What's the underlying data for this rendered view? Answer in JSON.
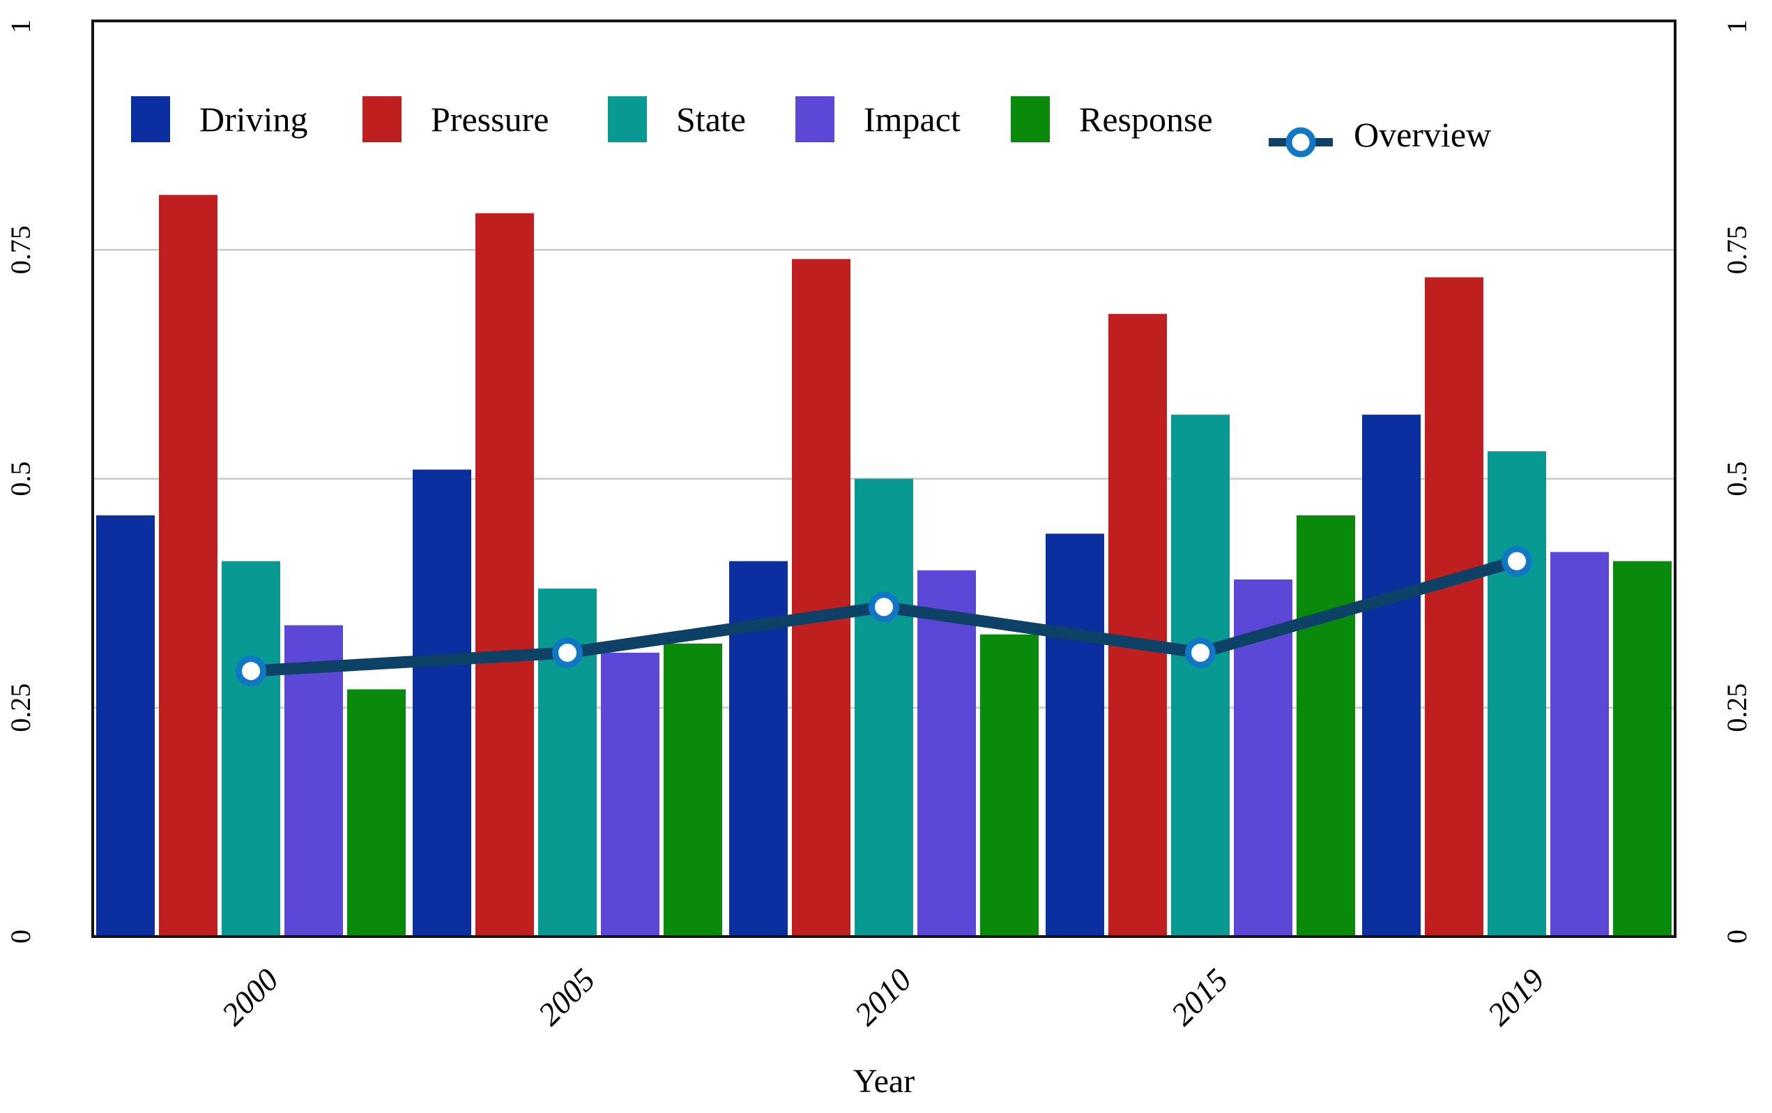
{
  "figure": {
    "background_color": "#ffffff",
    "plot_border_color": "#141414",
    "grid_color": "#c9c9c9",
    "text_color": "#000000"
  },
  "chart_data": {
    "type": "bar",
    "subtype": "grouped bars with overlaid line series (dual y-axis labels left and right)",
    "title": "",
    "xlabel": "Year",
    "ylabel": "",
    "ylim": [
      0,
      1
    ],
    "ytick_labels": [
      "0",
      "0.25",
      "0.5",
      "0.75",
      "1"
    ],
    "ytick_values": [
      0,
      0.25,
      0.5,
      0.75,
      1
    ],
    "grid": "horizontal gridlines at 0.25, 0.5, 0.75; y tick labels rotated 90° on both left and right sides; x tick labels rotated 45° italic",
    "legend_position": "top inside plot, horizontal row, no frame",
    "categories": [
      "2000",
      "2005",
      "2010",
      "2015",
      "2019"
    ],
    "series": [
      {
        "name": "Driving",
        "color": "#0b2f9e",
        "values": [
          0.46,
          0.51,
          0.41,
          0.44,
          0.57
        ]
      },
      {
        "name": "Pressure",
        "color": "#c01f1f",
        "values": [
          0.81,
          0.79,
          0.74,
          0.68,
          0.72
        ]
      },
      {
        "name": "State",
        "color": "#089a92",
        "values": [
          0.41,
          0.38,
          0.5,
          0.57,
          0.53
        ]
      },
      {
        "name": "Impact",
        "color": "#5b48d6",
        "values": [
          0.34,
          0.31,
          0.4,
          0.39,
          0.42
        ]
      },
      {
        "name": "Response",
        "color": "#0a8a0a",
        "values": [
          0.27,
          0.32,
          0.33,
          0.46,
          0.41
        ]
      }
    ],
    "line_series": {
      "name": "Overview",
      "line_color": "#0d4166",
      "marker_ring_color": "#0f77c3",
      "marker_fill_color": "#ffffff",
      "values": [
        0.29,
        0.31,
        0.36,
        0.31,
        0.41
      ]
    }
  }
}
